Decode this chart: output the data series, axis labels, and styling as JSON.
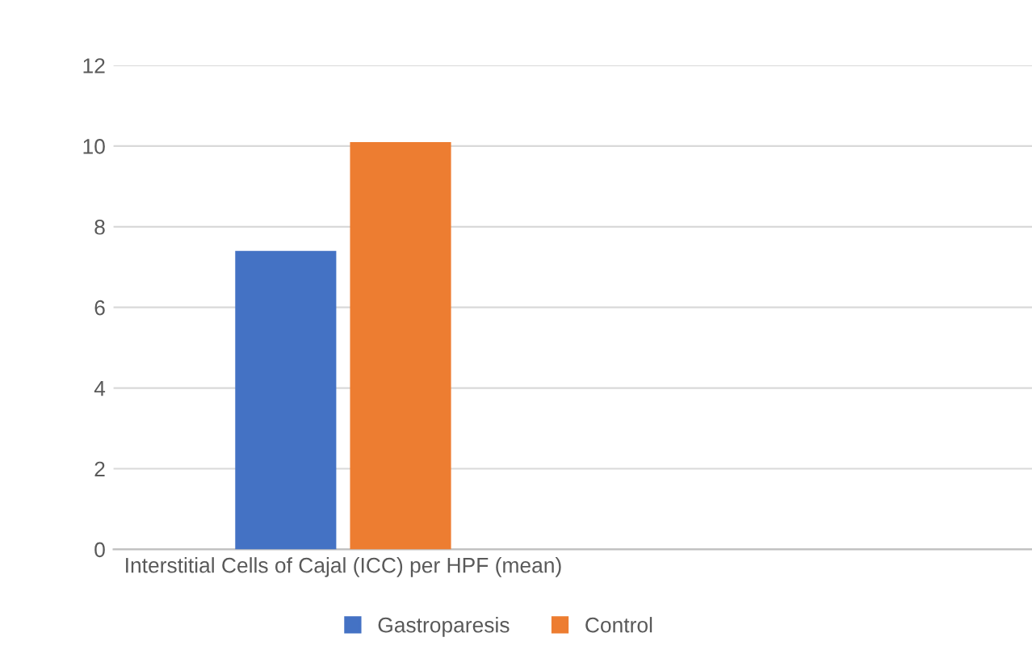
{
  "chart_data": {
    "type": "bar",
    "categories": [
      "Interstitial Cells of Cajal (ICC) per HPF (mean)",
      null
    ],
    "series": [
      {
        "name": "Gastroparesis",
        "color": "#4472c4",
        "values": [
          7.4,
          null
        ]
      },
      {
        "name": "Control",
        "color": "#ed7d31",
        "values": [
          10.1,
          null
        ]
      }
    ],
    "ylim": [
      0,
      12
    ],
    "yticks": [
      0,
      2,
      4,
      6,
      8,
      10,
      12
    ],
    "grid": "y",
    "legend": "bottom"
  }
}
